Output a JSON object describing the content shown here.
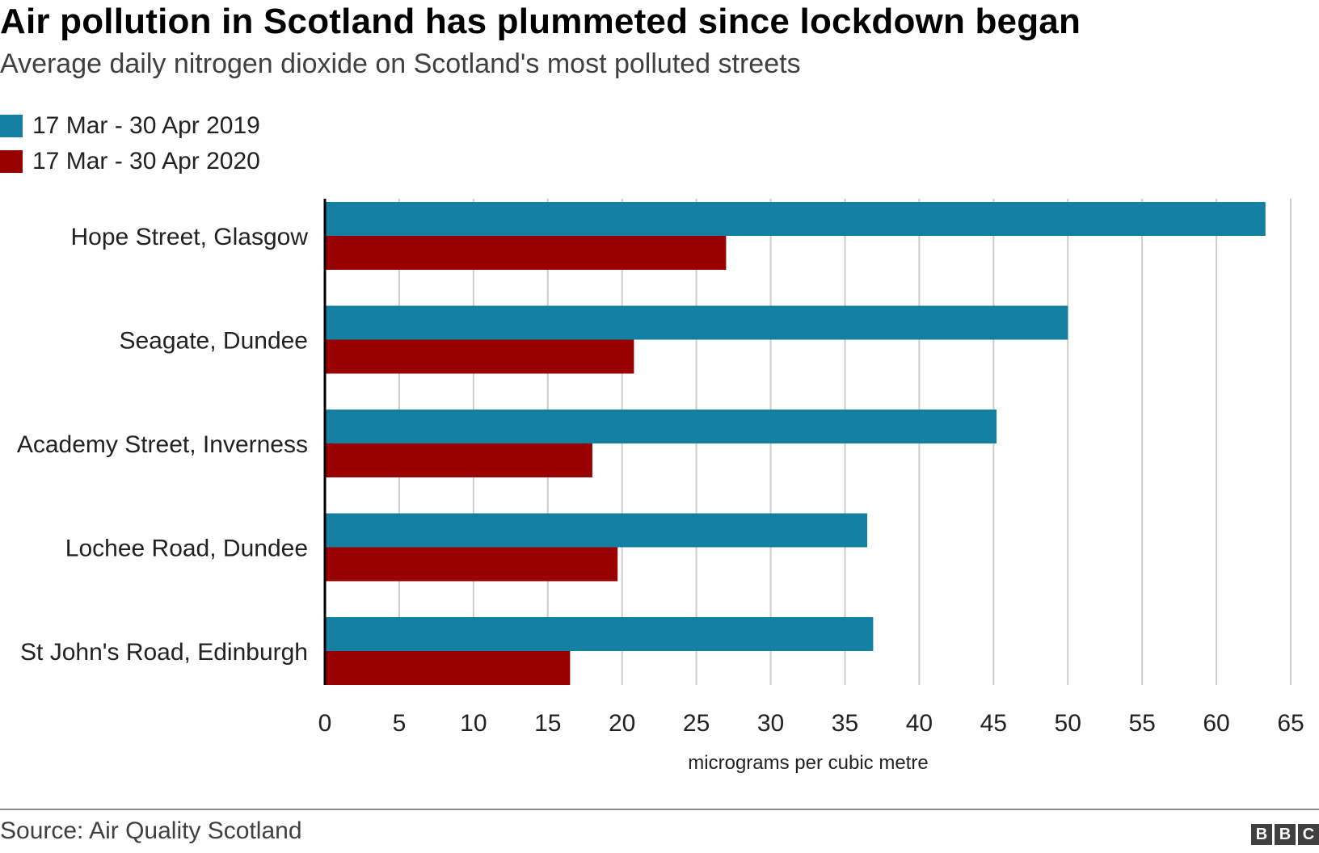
{
  "chart_data": {
    "type": "bar",
    "orientation": "horizontal",
    "title": "Air pollution in Scotland has plummeted since lockdown began",
    "subtitle": "Average daily nitrogen dioxide on Scotland's most polluted streets",
    "categories": [
      "Hope Street, Glasgow",
      "Seagate, Dundee",
      "Academy Street, Inverness",
      "Lochee Road, Dundee",
      "St John's Road, Edinburgh"
    ],
    "series": [
      {
        "name": "17 Mar - 30 Apr 2019",
        "color": "#1380a1",
        "values": [
          63.3,
          50.0,
          45.2,
          36.5,
          36.9
        ]
      },
      {
        "name": "17 Mar - 30 Apr 2020",
        "color": "#990000",
        "values": [
          27.0,
          20.8,
          18.0,
          19.7,
          16.5
        ]
      }
    ],
    "xlabel": "micrograms per cubic metre",
    "ylabel": "",
    "xlim": [
      0,
      65
    ],
    "xticks": [
      0,
      5,
      10,
      15,
      20,
      25,
      30,
      35,
      40,
      45,
      50,
      55,
      60,
      65
    ],
    "grid": true,
    "legend_position": "top-left"
  },
  "footer": {
    "source": "Source: Air Quality Scotland",
    "logo": [
      "B",
      "B",
      "C"
    ]
  }
}
